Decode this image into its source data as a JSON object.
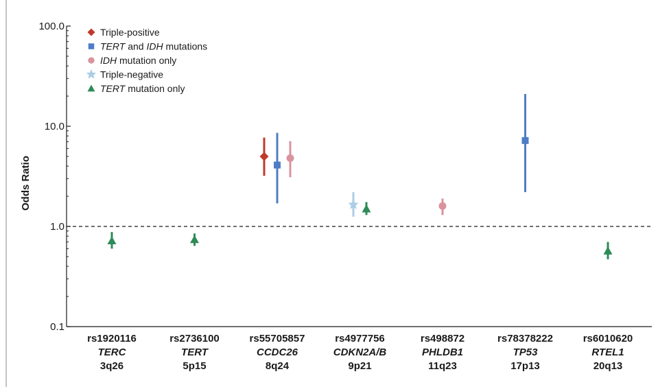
{
  "chart_data": {
    "type": "scatter",
    "ylabel": "Odds Ratio",
    "yscale": "log",
    "ylim": [
      0.1,
      100
    ],
    "yticks": [
      "0.1",
      "1.0",
      "10.0",
      "100.0"
    ],
    "reference_line": 1.0,
    "categories": [
      {
        "snp": "rs1920116",
        "gene": "TERC",
        "locus": "3q26"
      },
      {
        "snp": "rs2736100",
        "gene": "TERT",
        "locus": "5p15"
      },
      {
        "snp": "rs55705857",
        "gene": "CCDC26",
        "locus": "8q24"
      },
      {
        "snp": "rs4977756",
        "gene": "CDKN2A/B",
        "locus": "9p21"
      },
      {
        "snp": "rs498872",
        "gene": "PHLDB1",
        "locus": "11q23"
      },
      {
        "snp": "rs78378222",
        "gene": "TP53",
        "locus": "17p13"
      },
      {
        "snp": "rs6010620",
        "gene": "RTEL1",
        "locus": "20q13"
      }
    ],
    "legend_position": "top-left",
    "series": [
      {
        "name": "Triple-positive",
        "legend_parts": [
          {
            "text": "Triple-positive",
            "italic": false
          }
        ],
        "marker": "diamond",
        "color": "#c0392b",
        "points": [
          {
            "category": "rs55705857",
            "or": 5.0,
            "lower": 3.2,
            "upper": 7.7
          }
        ]
      },
      {
        "name": "TERT and IDH mutations",
        "legend_parts": [
          {
            "text": "TERT",
            "italic": true
          },
          {
            "text": " and ",
            "italic": false
          },
          {
            "text": "IDH",
            "italic": true
          },
          {
            "text": " mutations",
            "italic": false
          }
        ],
        "marker": "square",
        "color": "#4f7cc7",
        "points": [
          {
            "category": "rs55705857",
            "or": 4.1,
            "lower": 1.7,
            "upper": 8.6
          },
          {
            "category": "rs78378222",
            "or": 7.2,
            "lower": 2.2,
            "upper": 21.0
          }
        ]
      },
      {
        "name": "IDH mutation only",
        "legend_parts": [
          {
            "text": "IDH",
            "italic": true
          },
          {
            "text": " mutation only",
            "italic": false
          }
        ],
        "marker": "circle",
        "color": "#d9939f",
        "points": [
          {
            "category": "rs55705857",
            "or": 4.8,
            "lower": 3.1,
            "upper": 7.1
          },
          {
            "category": "rs498872",
            "or": 1.6,
            "lower": 1.3,
            "upper": 1.9
          }
        ]
      },
      {
        "name": "Triple-negative",
        "legend_parts": [
          {
            "text": "Triple-negative",
            "italic": false
          }
        ],
        "marker": "star",
        "color": "#abcde6",
        "points": [
          {
            "category": "rs4977756",
            "or": 1.65,
            "lower": 1.25,
            "upper": 2.2
          }
        ]
      },
      {
        "name": "TERT mutation only",
        "legend_parts": [
          {
            "text": "TERT",
            "italic": true
          },
          {
            "text": " mutation only",
            "italic": false
          }
        ],
        "marker": "triangle",
        "color": "#2e8b57",
        "points": [
          {
            "category": "rs1920116",
            "or": 0.72,
            "lower": 0.6,
            "upper": 0.88
          },
          {
            "category": "rs2736100",
            "or": 0.74,
            "lower": 0.64,
            "upper": 0.85
          },
          {
            "category": "rs4977756",
            "or": 1.5,
            "lower": 1.3,
            "upper": 1.75
          },
          {
            "category": "rs6010620",
            "or": 0.57,
            "lower": 0.47,
            "upper": 0.7
          }
        ]
      }
    ]
  }
}
